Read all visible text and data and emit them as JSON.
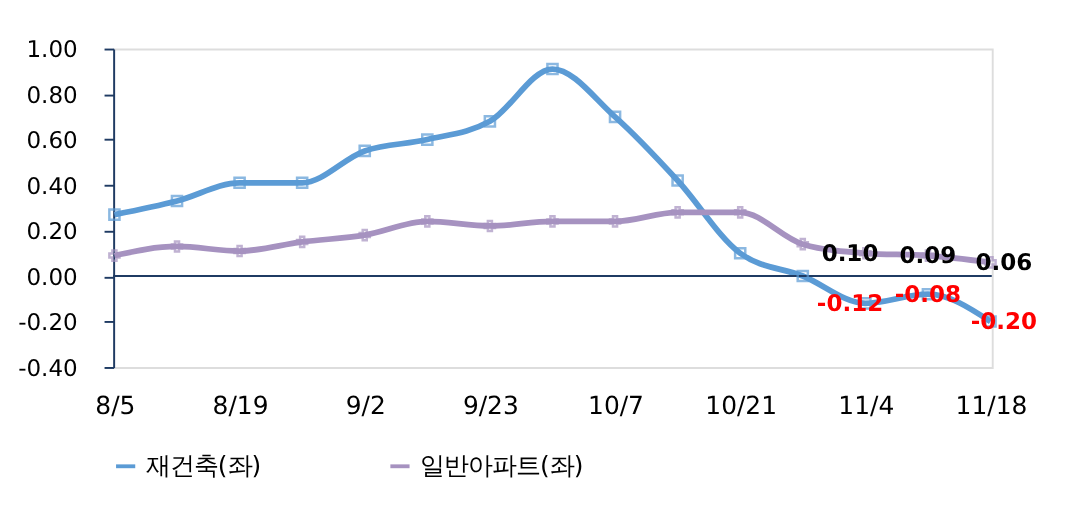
{
  "chart_data": {
    "type": "line",
    "categories": [
      "8/5",
      null,
      "8/19",
      null,
      "9/2",
      null,
      "9/23",
      null,
      "10/7",
      null,
      "10/21",
      null,
      "11/4",
      null,
      "11/18"
    ],
    "ylim": [
      -0.4,
      1.0
    ],
    "yticks": [
      {
        "value": -0.4,
        "label": "-0.40"
      },
      {
        "value": -0.2,
        "label": "-0.20"
      },
      {
        "value": 0,
        "label": "0.00"
      },
      {
        "value": 0.2,
        "label": "0.20"
      },
      {
        "value": 0.4,
        "label": "0.40"
      },
      {
        "value": 0.6,
        "label": "0.60"
      },
      {
        "value": 0.8,
        "label": "0.80"
      },
      {
        "value": 1.0,
        "label": "1.00"
      }
    ],
    "ref_lines": [
      {
        "axis": "y",
        "value": 0,
        "color": "#1f3b63"
      }
    ],
    "grid": false,
    "legend": "bottom",
    "line_style": "solid",
    "series": [
      {
        "name": "재건축(좌)",
        "color": "#5b9bd5",
        "marker": "square",
        "values": [
          0.27,
          0.33,
          0.41,
          0.41,
          0.55,
          0.6,
          0.68,
          0.91,
          0.7,
          0.42,
          0.1,
          0.0,
          -0.12,
          -0.08,
          -0.2
        ],
        "value_labels": [
          null,
          null,
          null,
          null,
          null,
          null,
          null,
          null,
          null,
          null,
          null,
          null,
          "-0.12",
          "-0.08",
          "-0.20"
        ]
      },
      {
        "name": "일반아파트(좌)",
        "color": "#a692c0",
        "marker": "cross",
        "values": [
          0.09,
          0.13,
          0.11,
          0.15,
          0.18,
          0.24,
          0.22,
          0.24,
          0.24,
          0.28,
          0.28,
          0.14,
          0.1,
          0.09,
          0.06
        ],
        "value_labels": [
          null,
          null,
          null,
          null,
          null,
          null,
          null,
          null,
          null,
          null,
          null,
          null,
          "0.10",
          "0.09",
          "0.06"
        ]
      }
    ]
  }
}
